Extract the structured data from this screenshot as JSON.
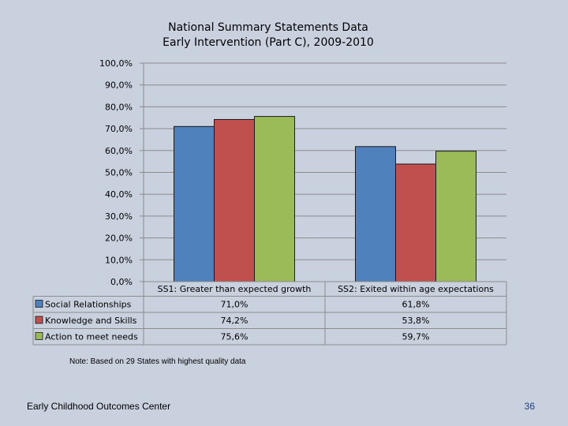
{
  "chart_data": {
    "type": "bar",
    "title": "National Summary Statements Data",
    "subtitle": "Early Intervention (Part C),  2009-2010",
    "categories": [
      "SS1: Greater than expected growth",
      "SS2: Exited within age expectations"
    ],
    "series": [
      {
        "name": "Social Relationships",
        "values": [
          71.0,
          61.8
        ],
        "labels": [
          "71,0%",
          "61,8%"
        ],
        "color": "#4f81bd"
      },
      {
        "name": "Knowledge and Skills",
        "values": [
          74.2,
          53.8
        ],
        "labels": [
          "74,2%",
          "53,8%"
        ],
        "color": "#c0504d"
      },
      {
        "name": "Action to meet needs",
        "values": [
          75.6,
          59.7
        ],
        "labels": [
          "75,6%",
          "59,7%"
        ],
        "color": "#9bbb59"
      }
    ],
    "ylim": [
      0,
      100
    ],
    "yticks": [
      "0,0%",
      "10,0%",
      "20,0%",
      "30,0%",
      "40,0%",
      "50,0%",
      "60,0%",
      "70,0%",
      "80,0%",
      "90,0%",
      "100,0%"
    ],
    "grid": true,
    "legend": "data-table"
  },
  "note": "Note:  Based on 29 States with highest quality data",
  "footer": {
    "org": "Early Childhood Outcomes Center",
    "page": "36"
  }
}
